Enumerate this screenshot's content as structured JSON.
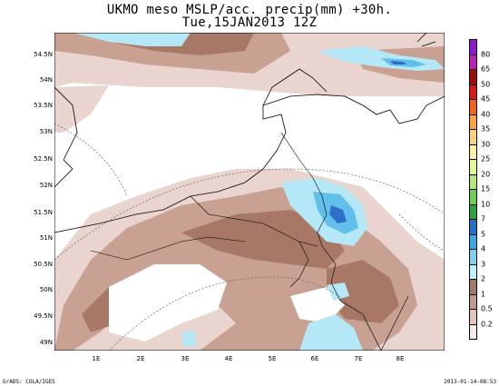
{
  "header": {
    "line1": "UKMO meso MSLP/acc. precip(mm) +30h.",
    "line2": "Tue,15JAN2013 12Z"
  },
  "map": {
    "lat_labels": [
      "54.5N",
      "54N",
      "53.5N",
      "53N",
      "52.5N",
      "52N",
      "51.5N",
      "51N",
      "50.5N",
      "50N",
      "49.5N",
      "49N"
    ],
    "lon_labels": [
      "1E",
      "2E",
      "3E",
      "4E",
      "5E",
      "6E",
      "7E",
      "8E"
    ],
    "shading_colors": {
      "light_pink": "#e9d4cf",
      "tan": "#c8a193",
      "brown": "#a87867",
      "light_blue": "#b5e8f7",
      "mid_blue": "#62bfe9",
      "dark_blue": "#2f6fc7"
    }
  },
  "legend": {
    "colors": [
      "#f5ece9",
      "#e2c6bd",
      "#c49b8b",
      "#a3796b",
      "#bfeffa",
      "#7dd1f0",
      "#36aae6",
      "#1e73c8",
      "#2ca33c",
      "#6ed04f",
      "#b2e97d",
      "#e4fa9a",
      "#fef3a2",
      "#fed27a",
      "#fba341",
      "#f46320",
      "#db1818",
      "#a00d0d",
      "#bd1ebd",
      "#8c1ccc"
    ],
    "labels": [
      "0.2",
      "0.5",
      "1",
      "2",
      "3",
      "4",
      "5",
      "7",
      "10",
      "15",
      "20",
      "25",
      "30",
      "35",
      "40",
      "45",
      "50",
      "65",
      "80"
    ]
  },
  "footer": {
    "left": "GrADS: COLA/IGES",
    "right": "2013-01-14-08:53"
  }
}
